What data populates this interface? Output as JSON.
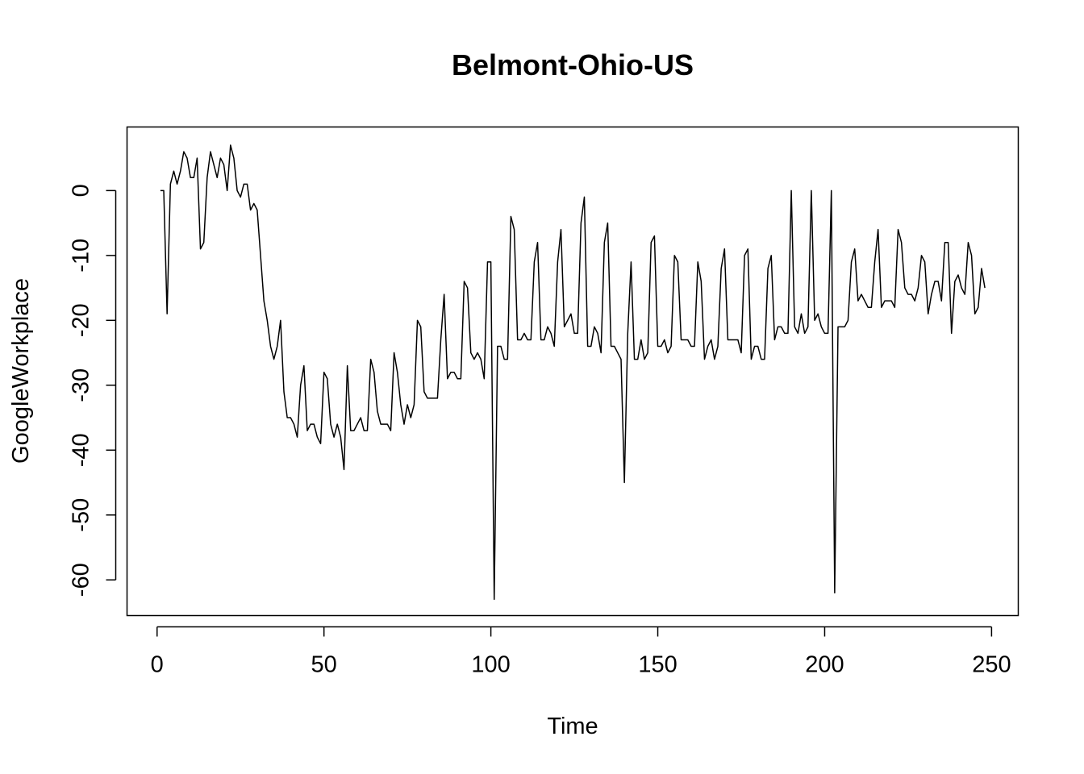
{
  "chart_data": {
    "type": "line",
    "title": "Belmont-Ohio-US",
    "xlabel": "Time",
    "ylabel": "GoogleWorkplace",
    "xlim": [
      -9,
      258
    ],
    "ylim": [
      -65.5,
      9.8
    ],
    "xticks": [
      0,
      50,
      100,
      150,
      200,
      250
    ],
    "yticks": [
      0,
      -10,
      -20,
      -30,
      -40,
      -50,
      -60
    ],
    "grid": false,
    "legend": "none",
    "line_color": "#000000",
    "series": [
      {
        "values": [
          0,
          0,
          -19,
          1,
          3,
          1,
          3,
          6,
          5,
          2,
          2,
          5,
          -9,
          -8,
          2,
          6,
          4,
          2,
          5,
          4,
          0,
          7,
          5,
          0,
          -1,
          1,
          1,
          -3,
          -2,
          -3,
          -10,
          -17,
          -20,
          -24,
          -26,
          -24,
          -20,
          -31,
          -35,
          -35,
          -36,
          -38,
          -30,
          -27,
          -37,
          -36,
          -36,
          -38,
          -39,
          -28,
          -29,
          -36,
          -38,
          -36,
          -38,
          -43,
          -27,
          -37,
          -37,
          -36,
          -35,
          -37,
          -37,
          -26,
          -28,
          -34,
          -36,
          -36,
          -36,
          -37,
          -25,
          -28,
          -33,
          -36,
          -33,
          -35,
          -33,
          -20,
          -21,
          -31,
          -32,
          -32,
          -32,
          -32,
          -23,
          -16,
          -29,
          -28,
          -28,
          -29,
          -29,
          -14,
          -15,
          -25,
          -26,
          -25,
          -26,
          -29,
          -11,
          -11,
          -63,
          -24,
          -24,
          -26,
          -26,
          -4,
          -6,
          -23,
          -23,
          -22,
          -23,
          -23,
          -11,
          -8,
          -23,
          -23,
          -21,
          -22,
          -24,
          -11,
          -6,
          -21,
          -20,
          -19,
          -22,
          -22,
          -5,
          -1,
          -24,
          -24,
          -21,
          -22,
          -25,
          -8,
          -5,
          -24,
          -24,
          -25,
          -26,
          -45,
          -22,
          -11,
          -26,
          -26,
          -23,
          -26,
          -25,
          -8,
          -7,
          -24,
          -24,
          -23,
          -25,
          -24,
          -10,
          -11,
          -23,
          -23,
          -23,
          -24,
          -24,
          -11,
          -14,
          -26,
          -24,
          -23,
          -26,
          -24,
          -12,
          -9,
          -23,
          -23,
          -23,
          -23,
          -25,
          -10,
          -9,
          -26,
          -24,
          -24,
          -26,
          -26,
          -12,
          -10,
          -23,
          -21,
          -21,
          -22,
          -22,
          0,
          -21,
          -22,
          -19,
          -22,
          -21,
          0,
          -20,
          -19,
          -21,
          -22,
          -22,
          0,
          -62,
          -21,
          -21,
          -21,
          -20,
          -11,
          -9,
          -17,
          -16,
          -17,
          -18,
          -18,
          -11,
          -6,
          -18,
          -17,
          -17,
          -17,
          -18,
          -6,
          -8,
          -15,
          -16,
          -16,
          -17,
          -15,
          -10,
          -11,
          -19,
          -16,
          -14,
          -14,
          -17,
          -8,
          -8,
          -22,
          -14,
          -13,
          -15,
          -16,
          -8,
          -10,
          -19,
          -18,
          -12,
          -15
        ]
      }
    ]
  }
}
